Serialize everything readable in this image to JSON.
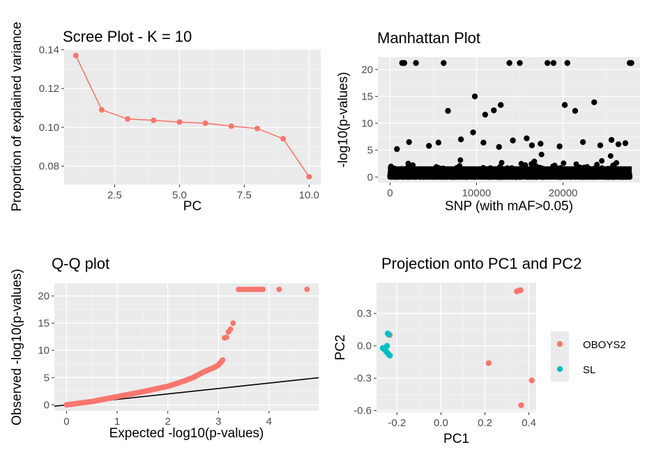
{
  "theme": {
    "panel_bg": "#ebebeb",
    "grid_major": "#ffffff",
    "red": "#f8766d",
    "teal": "#00bfc4",
    "black": "#000000"
  },
  "chart_data": [
    {
      "id": "scree",
      "type": "line",
      "title": "Scree Plot - K = 10",
      "xlabel": "PC",
      "ylabel": "Proportion of explained variance",
      "xlim": [
        0.55,
        10.45
      ],
      "ylim": [
        0.0705,
        0.1405
      ],
      "xticks": [
        2.5,
        5.0,
        7.5,
        10.0
      ],
      "xtick_labels": [
        "2.5",
        "5.0",
        "7.5",
        "10.0"
      ],
      "yticks": [
        0.08,
        0.1,
        0.12,
        0.14
      ],
      "ytick_labels": [
        "0.08",
        "0.10",
        "0.12",
        "0.14"
      ],
      "x": [
        1,
        2,
        3,
        4,
        5,
        6,
        7,
        8,
        9,
        10
      ],
      "y": [
        0.137,
        0.109,
        0.1043,
        0.1036,
        0.1027,
        0.1021,
        0.1006,
        0.0994,
        0.0941,
        0.0745
      ],
      "color": "#f8766d",
      "grid": true
    },
    {
      "id": "manhattan",
      "type": "scatter",
      "title": "Manhattan Plot",
      "xlabel": "SNP (with mAF>0.05)",
      "ylabel": "-log10(p-values)",
      "xlim": [
        -1400,
        28900
      ],
      "ylim": [
        -1.0,
        22.3
      ],
      "xticks": [
        0,
        10000,
        20000
      ],
      "xtick_labels": [
        "0",
        "10000",
        "20000"
      ],
      "yticks": [
        0,
        5,
        10,
        15,
        20
      ],
      "ytick_labels": [
        "0",
        "5",
        "10",
        "15",
        "20"
      ],
      "n_snps": 27700,
      "color": "#000000",
      "grid": true,
      "highlighted_points": [
        {
          "x": 1400,
          "y": 21.2
        },
        {
          "x": 1650,
          "y": 21.2
        },
        {
          "x": 3000,
          "y": 21.2
        },
        {
          "x": 6200,
          "y": 21.2
        },
        {
          "x": 13800,
          "y": 21.2
        },
        {
          "x": 15000,
          "y": 21.2
        },
        {
          "x": 18200,
          "y": 21.2
        },
        {
          "x": 18900,
          "y": 21.2
        },
        {
          "x": 20500,
          "y": 21.2
        },
        {
          "x": 27700,
          "y": 21.2
        },
        {
          "x": 27900,
          "y": 21.2
        },
        {
          "x": 6700,
          "y": 12.3
        },
        {
          "x": 9800,
          "y": 15.0
        },
        {
          "x": 11000,
          "y": 11.6
        },
        {
          "x": 12000,
          "y": 12.4
        },
        {
          "x": 12800,
          "y": 13.4
        },
        {
          "x": 20200,
          "y": 13.4
        },
        {
          "x": 21400,
          "y": 12.3
        },
        {
          "x": 23600,
          "y": 13.9
        },
        {
          "x": 9600,
          "y": 8.3
        },
        {
          "x": 8200,
          "y": 7.0
        },
        {
          "x": 15800,
          "y": 7.2
        },
        {
          "x": 2200,
          "y": 6.5
        },
        {
          "x": 4500,
          "y": 5.8
        },
        {
          "x": 5600,
          "y": 6.4
        },
        {
          "x": 10800,
          "y": 6.4
        },
        {
          "x": 14200,
          "y": 6.8
        },
        {
          "x": 17400,
          "y": 6.2
        },
        {
          "x": 22300,
          "y": 6.5
        },
        {
          "x": 24300,
          "y": 5.9
        },
        {
          "x": 25600,
          "y": 6.9
        },
        {
          "x": 27200,
          "y": 6.3
        },
        {
          "x": 26400,
          "y": 6.1
        },
        {
          "x": 19600,
          "y": 5.7
        },
        {
          "x": 800,
          "y": 5.2
        },
        {
          "x": 12600,
          "y": 5.6
        },
        {
          "x": 16400,
          "y": 5.9
        }
      ]
    },
    {
      "id": "qq",
      "type": "scatter",
      "title": "Q-Q plot",
      "xlabel": "Expected -log10(p-values)",
      "ylabel": "Observed -log10(p-values)",
      "xlim": [
        -0.24,
        4.98
      ],
      "ylim": [
        -1.1,
        22.3
      ],
      "xticks": [
        0,
        1,
        2,
        3,
        4
      ],
      "xtick_labels": [
        "0",
        "1",
        "2",
        "3",
        "4"
      ],
      "yticks": [
        0,
        5,
        10,
        15,
        20
      ],
      "ytick_labels": [
        "0",
        "5",
        "10",
        "15",
        "20"
      ],
      "color": "#f8766d",
      "reference_line": {
        "slope": 1,
        "intercept": 0,
        "color": "#000000"
      },
      "grid": true,
      "curve": [
        [
          0,
          0
        ],
        [
          0.5,
          0.6
        ],
        [
          1.0,
          1.5
        ],
        [
          1.5,
          2.4
        ],
        [
          2.0,
          3.4
        ],
        [
          2.3,
          4.3
        ],
        [
          2.5,
          5.0
        ],
        [
          2.7,
          6.0
        ],
        [
          2.9,
          6.8
        ],
        [
          3.0,
          7.3
        ],
        [
          3.1,
          8.4
        ]
      ],
      "points": [
        [
          3.12,
          12.3
        ],
        [
          3.16,
          12.4
        ],
        [
          3.2,
          13.4
        ],
        [
          3.24,
          13.9
        ],
        [
          3.29,
          15.0
        ],
        [
          3.4,
          21.2
        ],
        [
          3.46,
          21.2
        ],
        [
          3.52,
          21.2
        ],
        [
          3.58,
          21.2
        ],
        [
          3.64,
          21.2
        ],
        [
          3.7,
          21.2
        ],
        [
          3.76,
          21.2
        ],
        [
          3.82,
          21.2
        ],
        [
          3.88,
          21.2
        ],
        [
          4.2,
          21.2
        ],
        [
          4.75,
          21.2
        ]
      ]
    },
    {
      "id": "pca",
      "type": "scatter",
      "title": "Projection onto PC1 and PC2",
      "xlabel": "PC1",
      "ylabel": "PC2",
      "xlim": [
        -0.293,
        0.433
      ],
      "ylim": [
        -0.615,
        0.585
      ],
      "xticks": [
        -0.2,
        0.0,
        0.2,
        0.4
      ],
      "xtick_labels": [
        "-0.2",
        "0.0",
        "0.2",
        "0.4"
      ],
      "yticks": [
        -0.6,
        -0.3,
        0.0,
        0.3
      ],
      "ytick_labels": [
        "-0.6",
        "-0.3",
        "0.0",
        "0.3"
      ],
      "grid": true,
      "legend_position": "right",
      "series": [
        {
          "name": "OBOYS2",
          "color": "#f8766d",
          "points": [
            [
              0.345,
              0.505
            ],
            [
              0.355,
              0.512
            ],
            [
              0.362,
              0.515
            ],
            [
              0.217,
              -0.16
            ],
            [
              0.413,
              -0.32
            ],
            [
              0.365,
              -0.55
            ],
            [
              -0.233,
              0.1
            ]
          ]
        },
        {
          "name": "SL",
          "color": "#00bfc4",
          "points": [
            [
              -0.242,
              0.115
            ],
            [
              -0.238,
              0.105
            ],
            [
              -0.265,
              -0.02
            ],
            [
              -0.255,
              -0.025
            ],
            [
              -0.248,
              -0.055
            ],
            [
              -0.243,
              -0.065
            ],
            [
              -0.238,
              -0.08
            ],
            [
              -0.232,
              -0.09
            ],
            [
              -0.245,
              0.0
            ],
            [
              -0.26,
              -0.03
            ]
          ]
        }
      ]
    }
  ]
}
